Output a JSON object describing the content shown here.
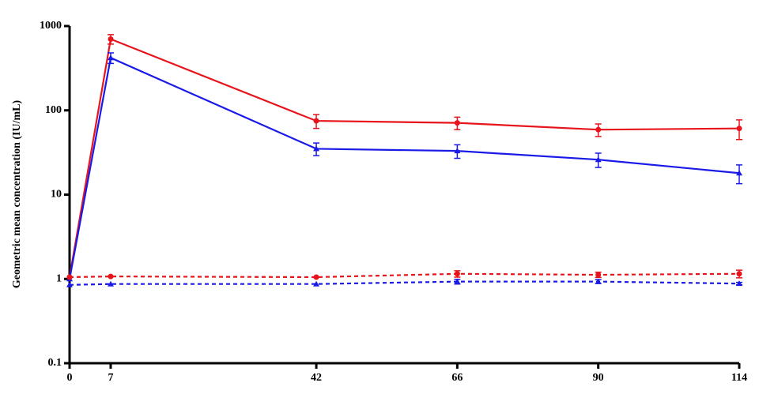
{
  "chart_data": {
    "type": "line",
    "y_label": "Geometric mean concentration (IU/mL)",
    "x": [
      0,
      7,
      42,
      66,
      90,
      114
    ],
    "xlim": [
      0,
      114
    ],
    "xticks": [
      0,
      7,
      42,
      66,
      90,
      114
    ],
    "ylim": [
      0.1,
      1000
    ],
    "yticks": [
      0.1,
      1,
      10,
      100,
      1000
    ],
    "log_y": true,
    "series": [
      {
        "color": "#e8141c",
        "marker": "circle",
        "dashed": false,
        "values": [
          1.05,
          700,
          75,
          71,
          59,
          61
        ],
        "errors": [
          null,
          90,
          14,
          12,
          10,
          16
        ]
      },
      {
        "color": "#1a1ae8",
        "marker": "triangle",
        "dashed": false,
        "values": [
          1.0,
          420,
          35,
          33,
          26,
          18
        ],
        "errors": [
          null,
          60,
          6,
          6,
          5,
          4.5
        ]
      },
      {
        "color": "#e8141c",
        "marker": "circle",
        "dashed": true,
        "values": [
          1.05,
          1.07,
          1.05,
          1.15,
          1.12,
          1.15
        ],
        "errors": [
          null,
          null,
          null,
          0.1,
          0.08,
          0.12
        ]
      },
      {
        "color": "#1a1ae8",
        "marker": "triangle",
        "dashed": true,
        "values": [
          0.85,
          0.87,
          0.87,
          0.93,
          0.93,
          0.88
        ],
        "errors": [
          null,
          null,
          null,
          0.06,
          0.05,
          0.03
        ]
      }
    ]
  }
}
